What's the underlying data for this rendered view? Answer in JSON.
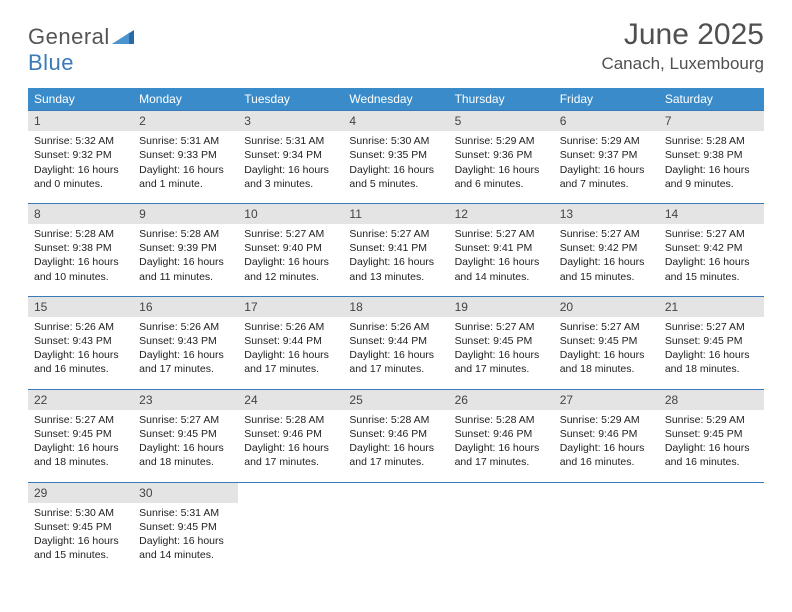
{
  "brand": {
    "general": "General",
    "blue": "Blue"
  },
  "title": "June 2025",
  "location": "Canach, Luxembourg",
  "colors": {
    "header_bg": "#3a8bc9",
    "header_fg": "#ffffff",
    "daynum_bg": "#e4e4e4",
    "rule": "#3a7ab8",
    "logo_gray": "#555555",
    "logo_blue": "#3a7ab8",
    "title_color": "#505050"
  },
  "typography": {
    "title_fontsize": 30,
    "location_fontsize": 17,
    "weekday_fontsize": 12,
    "daynum_fontsize": 12,
    "body_fontsize": 10.5
  },
  "weekdays": [
    "Sunday",
    "Monday",
    "Tuesday",
    "Wednesday",
    "Thursday",
    "Friday",
    "Saturday"
  ],
  "weeks": [
    [
      {
        "n": "1",
        "sr": "Sunrise: 5:32 AM",
        "ss": "Sunset: 9:32 PM",
        "dl": "Daylight: 16 hours and 0 minutes."
      },
      {
        "n": "2",
        "sr": "Sunrise: 5:31 AM",
        "ss": "Sunset: 9:33 PM",
        "dl": "Daylight: 16 hours and 1 minute."
      },
      {
        "n": "3",
        "sr": "Sunrise: 5:31 AM",
        "ss": "Sunset: 9:34 PM",
        "dl": "Daylight: 16 hours and 3 minutes."
      },
      {
        "n": "4",
        "sr": "Sunrise: 5:30 AM",
        "ss": "Sunset: 9:35 PM",
        "dl": "Daylight: 16 hours and 5 minutes."
      },
      {
        "n": "5",
        "sr": "Sunrise: 5:29 AM",
        "ss": "Sunset: 9:36 PM",
        "dl": "Daylight: 16 hours and 6 minutes."
      },
      {
        "n": "6",
        "sr": "Sunrise: 5:29 AM",
        "ss": "Sunset: 9:37 PM",
        "dl": "Daylight: 16 hours and 7 minutes."
      },
      {
        "n": "7",
        "sr": "Sunrise: 5:28 AM",
        "ss": "Sunset: 9:38 PM",
        "dl": "Daylight: 16 hours and 9 minutes."
      }
    ],
    [
      {
        "n": "8",
        "sr": "Sunrise: 5:28 AM",
        "ss": "Sunset: 9:38 PM",
        "dl": "Daylight: 16 hours and 10 minutes."
      },
      {
        "n": "9",
        "sr": "Sunrise: 5:28 AM",
        "ss": "Sunset: 9:39 PM",
        "dl": "Daylight: 16 hours and 11 minutes."
      },
      {
        "n": "10",
        "sr": "Sunrise: 5:27 AM",
        "ss": "Sunset: 9:40 PM",
        "dl": "Daylight: 16 hours and 12 minutes."
      },
      {
        "n": "11",
        "sr": "Sunrise: 5:27 AM",
        "ss": "Sunset: 9:41 PM",
        "dl": "Daylight: 16 hours and 13 minutes."
      },
      {
        "n": "12",
        "sr": "Sunrise: 5:27 AM",
        "ss": "Sunset: 9:41 PM",
        "dl": "Daylight: 16 hours and 14 minutes."
      },
      {
        "n": "13",
        "sr": "Sunrise: 5:27 AM",
        "ss": "Sunset: 9:42 PM",
        "dl": "Daylight: 16 hours and 15 minutes."
      },
      {
        "n": "14",
        "sr": "Sunrise: 5:27 AM",
        "ss": "Sunset: 9:42 PM",
        "dl": "Daylight: 16 hours and 15 minutes."
      }
    ],
    [
      {
        "n": "15",
        "sr": "Sunrise: 5:26 AM",
        "ss": "Sunset: 9:43 PM",
        "dl": "Daylight: 16 hours and 16 minutes."
      },
      {
        "n": "16",
        "sr": "Sunrise: 5:26 AM",
        "ss": "Sunset: 9:43 PM",
        "dl": "Daylight: 16 hours and 17 minutes."
      },
      {
        "n": "17",
        "sr": "Sunrise: 5:26 AM",
        "ss": "Sunset: 9:44 PM",
        "dl": "Daylight: 16 hours and 17 minutes."
      },
      {
        "n": "18",
        "sr": "Sunrise: 5:26 AM",
        "ss": "Sunset: 9:44 PM",
        "dl": "Daylight: 16 hours and 17 minutes."
      },
      {
        "n": "19",
        "sr": "Sunrise: 5:27 AM",
        "ss": "Sunset: 9:45 PM",
        "dl": "Daylight: 16 hours and 17 minutes."
      },
      {
        "n": "20",
        "sr": "Sunrise: 5:27 AM",
        "ss": "Sunset: 9:45 PM",
        "dl": "Daylight: 16 hours and 18 minutes."
      },
      {
        "n": "21",
        "sr": "Sunrise: 5:27 AM",
        "ss": "Sunset: 9:45 PM",
        "dl": "Daylight: 16 hours and 18 minutes."
      }
    ],
    [
      {
        "n": "22",
        "sr": "Sunrise: 5:27 AM",
        "ss": "Sunset: 9:45 PM",
        "dl": "Daylight: 16 hours and 18 minutes."
      },
      {
        "n": "23",
        "sr": "Sunrise: 5:27 AM",
        "ss": "Sunset: 9:45 PM",
        "dl": "Daylight: 16 hours and 18 minutes."
      },
      {
        "n": "24",
        "sr": "Sunrise: 5:28 AM",
        "ss": "Sunset: 9:46 PM",
        "dl": "Daylight: 16 hours and 17 minutes."
      },
      {
        "n": "25",
        "sr": "Sunrise: 5:28 AM",
        "ss": "Sunset: 9:46 PM",
        "dl": "Daylight: 16 hours and 17 minutes."
      },
      {
        "n": "26",
        "sr": "Sunrise: 5:28 AM",
        "ss": "Sunset: 9:46 PM",
        "dl": "Daylight: 16 hours and 17 minutes."
      },
      {
        "n": "27",
        "sr": "Sunrise: 5:29 AM",
        "ss": "Sunset: 9:46 PM",
        "dl": "Daylight: 16 hours and 16 minutes."
      },
      {
        "n": "28",
        "sr": "Sunrise: 5:29 AM",
        "ss": "Sunset: 9:45 PM",
        "dl": "Daylight: 16 hours and 16 minutes."
      }
    ],
    [
      {
        "n": "29",
        "sr": "Sunrise: 5:30 AM",
        "ss": "Sunset: 9:45 PM",
        "dl": "Daylight: 16 hours and 15 minutes."
      },
      {
        "n": "30",
        "sr": "Sunrise: 5:31 AM",
        "ss": "Sunset: 9:45 PM",
        "dl": "Daylight: 16 hours and 14 minutes."
      },
      null,
      null,
      null,
      null,
      null
    ]
  ]
}
